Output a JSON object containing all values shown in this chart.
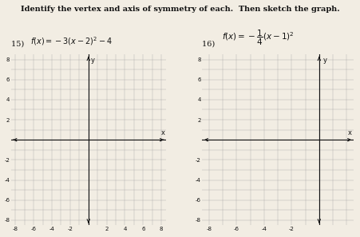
{
  "title": "Identify the vertex and axis of symmetry of each.  Then sketch the graph.",
  "problem15_label": "15) ",
  "problem15_math": "f(x) = -3(x - 2)^2 - 4",
  "problem16_label": "16) ",
  "problem16_math": "f(x) = -\\frac{1}{4}(x - 1)^2",
  "grid1": {
    "xlim": [
      -8.5,
      8.5
    ],
    "ylim": [
      -8.5,
      8.5
    ],
    "xtick_labels": [
      "-8",
      "-6",
      "-4",
      "-2",
      "2",
      "4",
      "6",
      "8"
    ],
    "xtick_vals": [
      -8,
      -6,
      -4,
      -2,
      2,
      4,
      6,
      8
    ],
    "ytick_labels": [
      "-8",
      "-6",
      "-4",
      "-2",
      "2",
      "4",
      "6",
      "8"
    ],
    "ytick_vals": [
      -8,
      -6,
      -4,
      -2,
      2,
      4,
      6,
      8
    ]
  },
  "grid2": {
    "xlim": [
      -8.5,
      2.5
    ],
    "ylim": [
      -8.5,
      8.5
    ],
    "xtick_labels": [
      "-8",
      "-6",
      "-4",
      "-2"
    ],
    "xtick_vals": [
      -8,
      -6,
      -4,
      -2
    ],
    "ytick_labels": [
      "-8",
      "-6",
      "-4",
      "-2",
      "2",
      "4",
      "6",
      "8"
    ],
    "ytick_vals": [
      -8,
      -6,
      -4,
      -2,
      2,
      4,
      6,
      8
    ]
  },
  "bg_color": "#f2ede3",
  "grid_color": "#aaaaaa",
  "axis_color": "#111111",
  "tick_fontsize": 5,
  "label_fontsize": 6
}
